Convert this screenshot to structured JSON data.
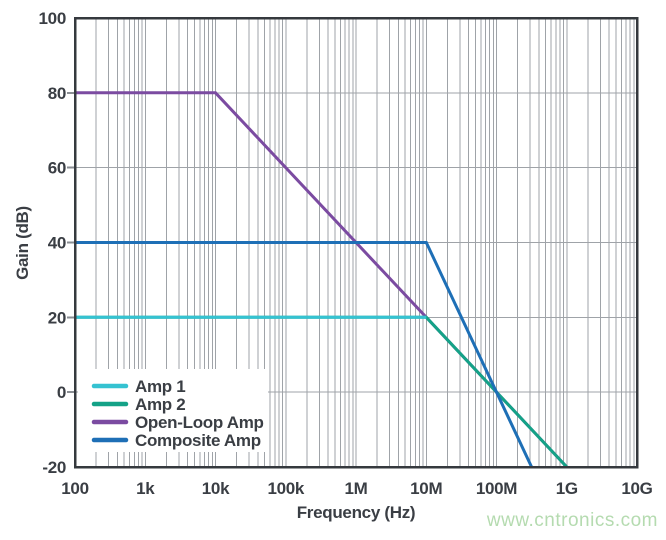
{
  "watermark": "www.cntronics.com",
  "chart_data": {
    "type": "line",
    "title": "",
    "xlabel": "Frequency (Hz)",
    "ylabel": "Gain (dB)",
    "x_axis": {
      "scale": "log",
      "min": 100,
      "max": 10000000000,
      "tick_labels": [
        "100",
        "1k",
        "10k",
        "100k",
        "1M",
        "10M",
        "100M",
        "1G",
        "10G"
      ],
      "tick_values": [
        100,
        1000,
        10000,
        100000,
        1000000,
        10000000,
        100000000,
        1000000000,
        10000000000
      ]
    },
    "y_axis": {
      "min": -20,
      "max": 100,
      "tick_labels": [
        "100",
        "80",
        "60",
        "40",
        "20",
        "0",
        "-20"
      ],
      "tick_values": [
        100,
        80,
        60,
        40,
        20,
        0,
        -20
      ]
    },
    "grid": true,
    "frame_color": "#35393E",
    "grid_color": "#9FA3A8",
    "series": [
      {
        "name": "Open-Loop Amp",
        "color": "#7B4BA1",
        "points": [
          [
            100,
            80
          ],
          [
            10000,
            80
          ],
          [
            1000000000,
            -20
          ]
        ]
      },
      {
        "name": "Amp 2",
        "color": "#14A287",
        "points": [
          [
            100,
            20
          ],
          [
            10000000,
            20
          ],
          [
            1000000000,
            -20
          ]
        ]
      },
      {
        "name": "Amp 1",
        "color": "#35C2D1",
        "points": [
          [
            100,
            20
          ],
          [
            10000000,
            20
          ]
        ]
      },
      {
        "name": "Composite Amp",
        "color": "#1E6FB6",
        "points": [
          [
            100,
            40
          ],
          [
            10000000,
            40
          ],
          [
            316227766,
            -20
          ]
        ]
      }
    ],
    "legend": {
      "position": "lower-left",
      "entries": [
        {
          "label": "Amp 1",
          "color": "#35C2D1"
        },
        {
          "label": "Amp 2",
          "color": "#14A287"
        },
        {
          "label": "Open-Loop Amp",
          "color": "#7B4BA1"
        },
        {
          "label": "Composite Amp",
          "color": "#1E6FB6"
        }
      ]
    }
  }
}
